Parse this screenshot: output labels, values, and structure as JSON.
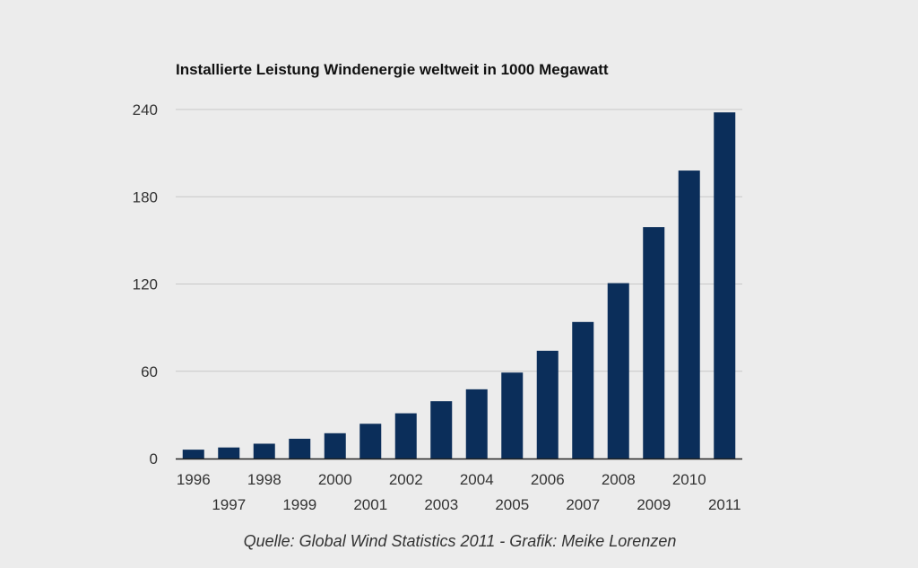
{
  "chart_data": {
    "type": "bar",
    "title": "Installierte Leistung Windenergie weltweit in 1000 Megawatt",
    "xlabel": "",
    "ylabel": "",
    "categories": [
      "1996",
      "1997",
      "1998",
      "1999",
      "2000",
      "2001",
      "2002",
      "2003",
      "2004",
      "2005",
      "2006",
      "2007",
      "2008",
      "2009",
      "2010",
      "2011"
    ],
    "values": [
      6.1,
      7.6,
      10.2,
      13.6,
      17.4,
      23.9,
      31.1,
      39.4,
      47.6,
      59.1,
      74.1,
      93.9,
      120.6,
      159.1,
      198.0,
      238.0
    ],
    "ylim": [
      0,
      240
    ],
    "yticks": [
      0,
      60,
      120,
      180,
      240
    ],
    "grid": true,
    "legend": "none",
    "bar_color": "#0b2e5a",
    "grid_color": "#c8c8c8",
    "axis_color": "#222222"
  },
  "footer": {
    "source": "Quelle: Global Wind Statistics 2011 - Grafik: Meike Lorenzen"
  }
}
